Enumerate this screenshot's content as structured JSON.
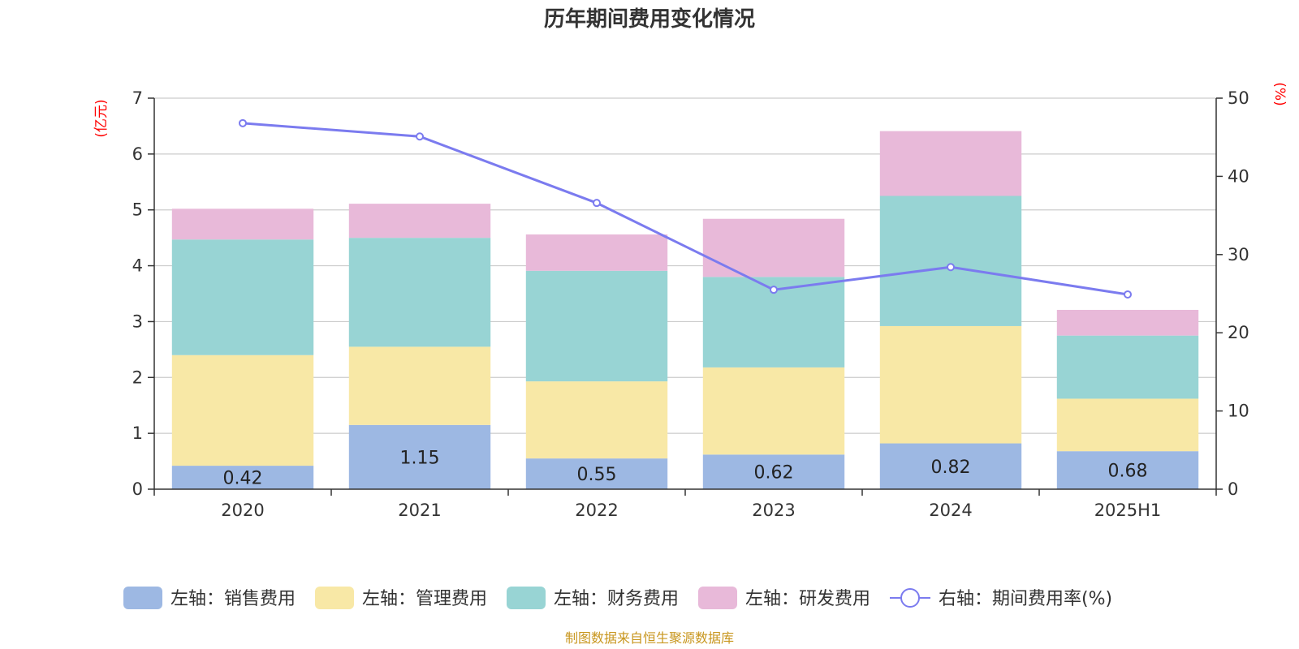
{
  "chart_data": {
    "type": "bar",
    "title": "历年期间费用变化情况",
    "categories": [
      "2020",
      "2021",
      "2022",
      "2023",
      "2024",
      "2025H1"
    ],
    "y_left": {
      "unit": "(亿元)",
      "ylim": [
        0,
        7
      ],
      "ticks": [
        "0",
        "1",
        "2",
        "3",
        "4",
        "5",
        "6",
        "7"
      ]
    },
    "y_right": {
      "unit": "(%)",
      "ylim": [
        0,
        50
      ],
      "ticks": [
        "0",
        "10",
        "20",
        "30",
        "40",
        "50"
      ]
    },
    "stacked": true,
    "grid": true,
    "legend_position": "bottom",
    "series": [
      {
        "name": "左轴：销售费用",
        "type": "bar",
        "axis": "left",
        "color": "#9db8e3",
        "values": [
          0.42,
          1.15,
          0.55,
          0.62,
          0.82,
          0.68
        ],
        "labels": [
          "0.42",
          "1.15",
          "0.55",
          "0.62",
          "0.82",
          "0.68"
        ]
      },
      {
        "name": "左轴：管理费用",
        "type": "bar",
        "axis": "left",
        "color": "#f8e8a6",
        "values": [
          1.98,
          1.4,
          1.38,
          1.56,
          2.1,
          0.94
        ]
      },
      {
        "name": "左轴：财务费用",
        "type": "bar",
        "axis": "left",
        "color": "#98d4d4",
        "values": [
          2.07,
          1.95,
          1.98,
          1.62,
          2.33,
          1.13
        ]
      },
      {
        "name": "左轴：研发费用",
        "type": "bar",
        "axis": "left",
        "color": "#e8b9d9",
        "values": [
          0.55,
          0.61,
          0.65,
          1.04,
          1.16,
          0.46
        ]
      },
      {
        "name": "右轴：期间费用率(%)",
        "type": "line",
        "axis": "right",
        "color": "#7b7bef",
        "values": [
          46.8,
          45.1,
          36.6,
          25.5,
          28.4,
          24.9
        ]
      }
    ],
    "source": "制图数据来自恒生聚源数据库"
  }
}
